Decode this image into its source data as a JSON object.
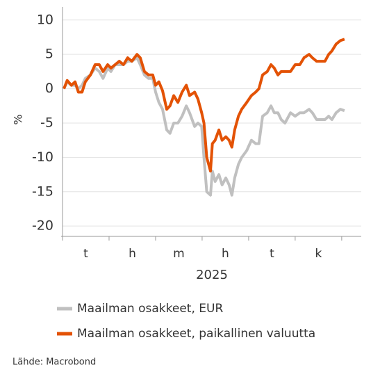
{
  "chart_data": {
    "type": "line",
    "ylabel": "%",
    "xlabel": "2025",
    "xlim": [
      -0.03,
      6.42
    ],
    "xticks": [
      0,
      1,
      2,
      3,
      4,
      5,
      6
    ],
    "month_labels": [
      {
        "value": 0.5,
        "label": "t"
      },
      {
        "value": 1.5,
        "label": "h"
      },
      {
        "value": 2.5,
        "label": "m"
      },
      {
        "value": 3.5,
        "label": "h"
      },
      {
        "value": 4.5,
        "label": "t"
      },
      {
        "value": 5.5,
        "label": "k"
      }
    ],
    "ylim": [
      -21.5,
      11.9
    ],
    "yticks": [
      10,
      5,
      0,
      -5,
      -10,
      -15,
      -20
    ],
    "grid": true,
    "x": [
      0.03,
      0.1,
      0.19,
      0.27,
      0.34,
      0.42,
      0.49,
      0.6,
      0.7,
      0.79,
      0.87,
      0.97,
      1.04,
      1.13,
      1.22,
      1.31,
      1.4,
      1.49,
      1.6,
      1.67,
      1.76,
      1.85,
      1.94,
      2.0,
      2.07,
      2.15,
      2.24,
      2.31,
      2.39,
      2.48,
      2.57,
      2.66,
      2.73,
      2.84,
      2.91,
      2.99,
      3.04,
      3.1,
      3.18,
      3.22,
      3.28,
      3.36,
      3.43,
      3.51,
      3.58,
      3.64,
      3.7,
      3.78,
      3.85,
      3.96,
      4.06,
      4.15,
      4.22,
      4.3,
      4.4,
      4.48,
      4.55,
      4.63,
      4.7,
      4.78,
      4.9,
      5.0,
      5.1,
      5.19,
      5.3,
      5.37,
      5.46,
      5.55,
      5.64,
      5.72,
      5.79,
      5.88,
      5.97,
      6.06
    ],
    "series": [
      {
        "name": "Maailman osakkeet, EUR",
        "color": "#c0c0c0",
        "values": [
          0,
          1,
          0.5,
          0.5,
          0,
          0.5,
          1.5,
          2,
          3,
          2.5,
          1.5,
          3,
          2.5,
          3.5,
          3.5,
          3.5,
          4,
          4,
          4.5,
          3.5,
          2,
          1.5,
          1.5,
          -0.5,
          -2,
          -3,
          -6,
          -6.5,
          -5,
          -5,
          -4,
          -2.5,
          -3.5,
          -5.5,
          -5,
          -5.5,
          -10,
          -15,
          -15.5,
          -12,
          -13.5,
          -12.5,
          -14,
          -13,
          -14,
          -15.5,
          -13,
          -11,
          -10,
          -9,
          -7.5,
          -8,
          -8,
          -4,
          -3.5,
          -2.5,
          -3.5,
          -3.5,
          -4.5,
          -5,
          -3.5,
          -4,
          -3.5,
          -3.5,
          -3,
          -3.5,
          -4.5,
          -4.5,
          -4.5,
          -4,
          -4.5,
          -3.5,
          -3,
          -3.2
        ]
      },
      {
        "name": "Maailman osakkeet, paikallinen valuutta",
        "color": "#e35205",
        "values": [
          0,
          1.2,
          0.5,
          1,
          -0.5,
          -0.5,
          1,
          2,
          3.5,
          3.5,
          2.5,
          3.5,
          3,
          3.5,
          4,
          3.5,
          4.5,
          4,
          5,
          4.5,
          2.5,
          2,
          2,
          0.5,
          1,
          -0.3,
          -3,
          -2.5,
          -1,
          -2,
          -0.5,
          0.5,
          -1,
          -0.5,
          -1.5,
          -3.5,
          -5,
          -10,
          -12,
          -8,
          -7.5,
          -6,
          -7.5,
          -7,
          -7.5,
          -8.5,
          -6,
          -4,
          -3,
          -2,
          -1,
          -0.5,
          0,
          2,
          2.5,
          3.5,
          3,
          2,
          2.5,
          2.5,
          2.5,
          3.5,
          3.5,
          4.5,
          5,
          4.5,
          4,
          4,
          4,
          5,
          5.5,
          6.5,
          7,
          7.2
        ]
      }
    ],
    "source": "Lähde: Macrobond"
  }
}
